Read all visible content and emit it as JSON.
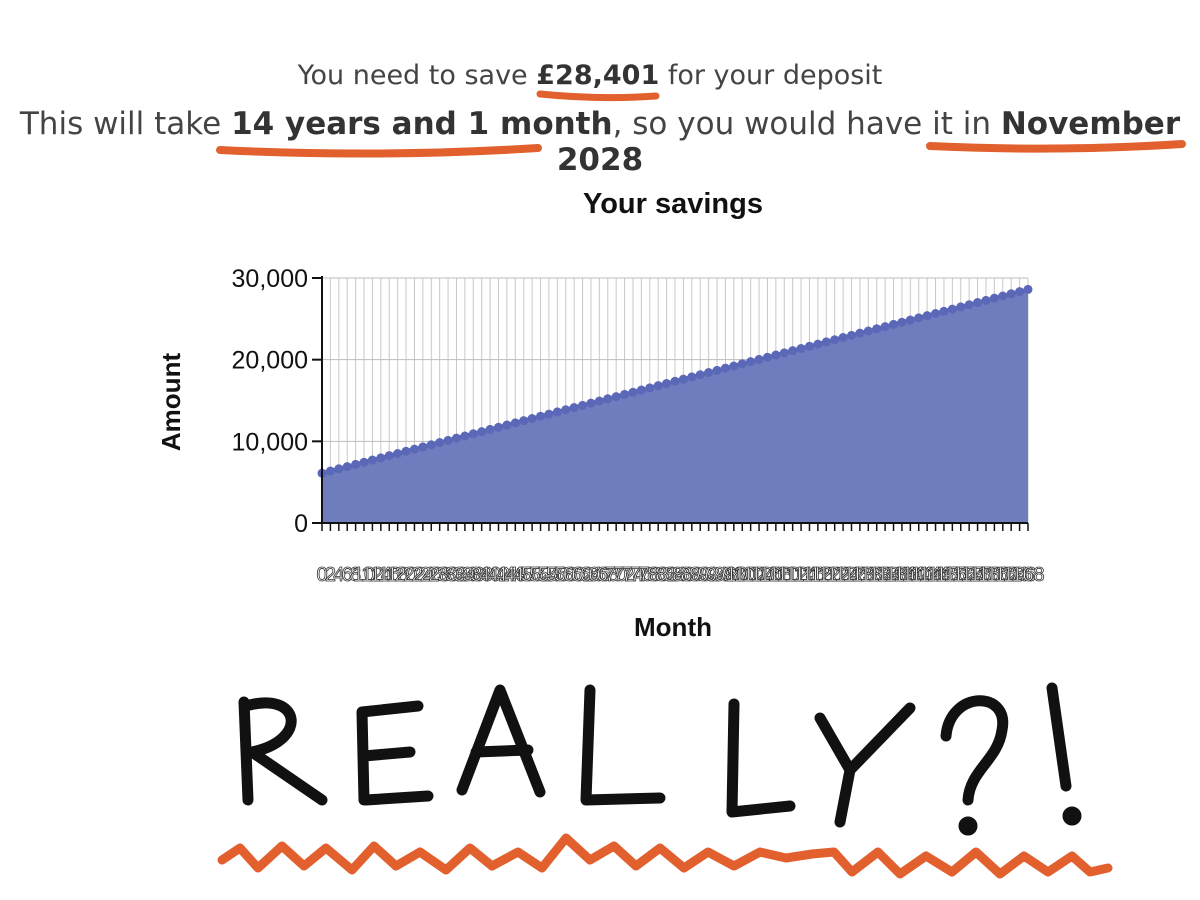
{
  "summary": {
    "line1_prefix": "You need to save ",
    "deposit_amount": "£28,401",
    "line1_suffix": " for your deposit",
    "line2_prefix": "This will take ",
    "duration": "14 years and 1 month",
    "line2_middle": ", so you would have it in ",
    "target_date": "November 2028"
  },
  "annotation": {
    "text": "REALLY?!",
    "ink_color": "#111111",
    "underline_color": "#e2602e"
  },
  "chart_data": {
    "type": "area",
    "title": "Your savings",
    "xlabel": "Month",
    "ylabel": "Amount",
    "ylim": [
      0,
      30000
    ],
    "yticks": [
      "0",
      "10,000",
      "20,000",
      "30,000"
    ],
    "x_start": 0,
    "x_end": 168,
    "x_step": 2,
    "y_start": 6100,
    "y_end": 28600,
    "series_color": "#5b68b8",
    "fill_color": "#6f7cbd",
    "grid": true,
    "legend": "none"
  }
}
